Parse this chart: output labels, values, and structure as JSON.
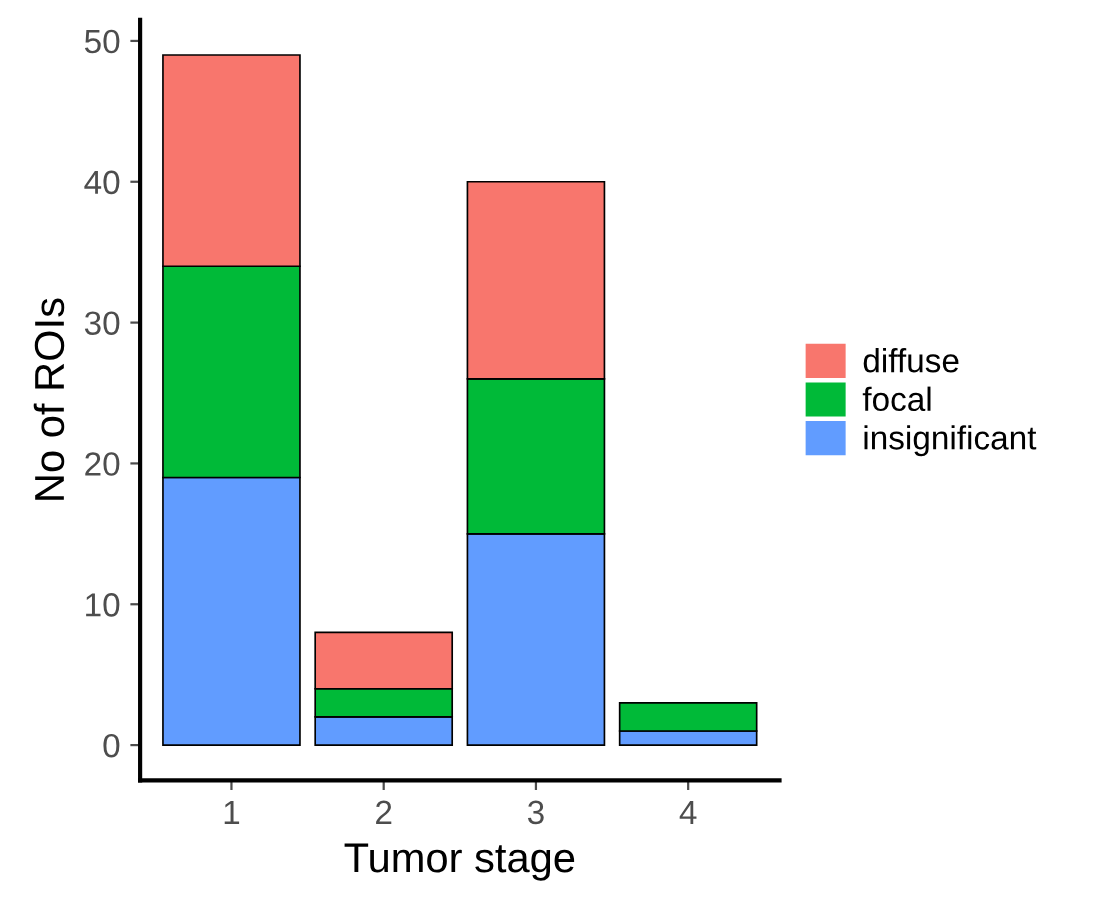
{
  "chart_data": {
    "type": "bar",
    "stacked": true,
    "xlabel": "Tumor stage",
    "ylabel": "No of ROIs",
    "categories": [
      "1",
      "2",
      "3",
      "4"
    ],
    "series": [
      {
        "name": "insignificant",
        "color": "#619cff",
        "values": [
          19,
          2,
          15,
          1
        ]
      },
      {
        "name": "focal",
        "color": "#00ba38",
        "values": [
          15,
          2,
          11,
          2
        ]
      },
      {
        "name": "diffuse",
        "color": "#f8766d",
        "values": [
          15,
          4,
          14,
          0
        ]
      }
    ],
    "ylim": [
      -2.5,
      51.5
    ],
    "yticks": [
      0,
      10,
      20,
      30,
      40,
      50
    ],
    "grid": false,
    "legend": "right"
  }
}
